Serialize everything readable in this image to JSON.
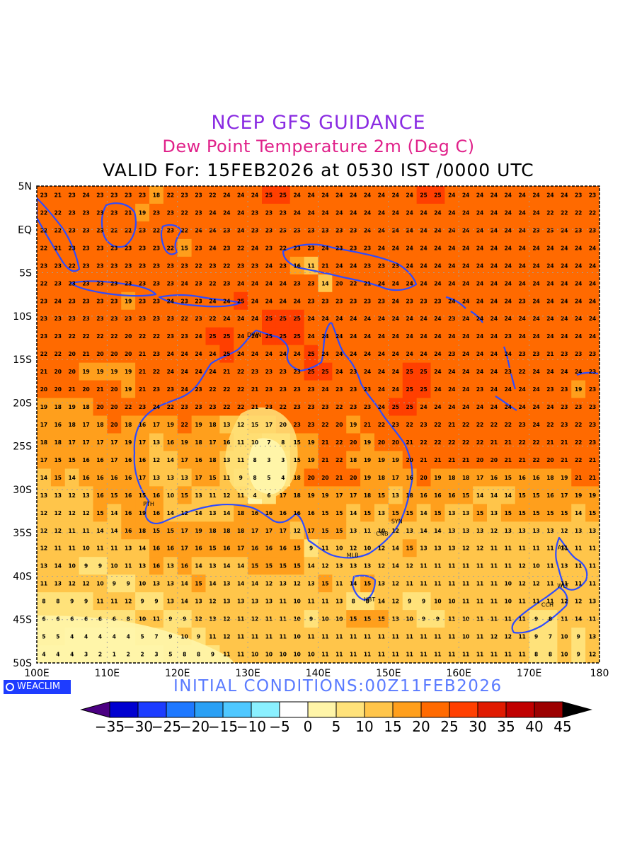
{
  "header": {
    "title": "NCEP GFS GUIDANCE",
    "subtitle": "Dew Point Temperature 2m (Deg C)",
    "valid_line": "VALID For: 15FEB2026 at 0530 IST /0000 UTC"
  },
  "footer": {
    "initial_conditions": "INITIAL CONDITIONS:00Z11FEB2026",
    "logo_text": "WEACLIM"
  },
  "map": {
    "lon_labels": [
      "100E",
      "110E",
      "120E",
      "130E",
      "140E",
      "150E",
      "160E",
      "170E",
      "180"
    ],
    "lat_labels": [
      "5N",
      "EQ",
      "5S",
      "10S",
      "15S",
      "20S",
      "25S",
      "30S",
      "35S",
      "40S",
      "45S",
      "50S"
    ],
    "stations": [
      "DWN",
      "PTH",
      "SYN",
      "CNB",
      "MLB",
      "HBT",
      "AKL",
      "WLT",
      "CCH"
    ],
    "coast_color": "#2e4bff"
  },
  "legend": {
    "labels": [
      "-35",
      "-30",
      "-25",
      "-20",
      "-15",
      "-10",
      "-5",
      "0",
      "5",
      "10",
      "15",
      "20",
      "25",
      "30",
      "35",
      "40",
      "45"
    ],
    "colors": [
      "#4b0082",
      "#0000d0",
      "#1c3cff",
      "#1e78ff",
      "#2aa0f5",
      "#4fc8ff",
      "#8af0ff",
      "#ffffff",
      "#fff5a8",
      "#ffe27a",
      "#ffc54a",
      "#ff9f1c",
      "#ff6a00",
      "#ff3f00",
      "#e01a00",
      "#c00000",
      "#9c0000",
      "#000000"
    ]
  },
  "chart_data": {
    "type": "heatmap",
    "title": "Dew Point Temperature 2m (Deg C)",
    "x_range": [
      100,
      180
    ],
    "y_range": [
      -50,
      5
    ],
    "grid": true,
    "values_rows_north_to_south": [
      [
        23,
        21,
        23,
        24,
        23,
        23,
        23,
        23,
        18,
        22,
        23,
        23,
        22,
        24,
        24,
        24,
        25,
        25,
        24,
        24,
        24,
        24,
        24,
        24,
        24,
        24,
        24,
        25,
        25,
        24,
        24,
        24,
        24,
        24,
        24,
        24,
        24,
        24,
        23,
        23
      ],
      [
        22,
        22,
        23,
        23,
        23,
        23,
        21,
        19,
        23,
        23,
        22,
        23,
        24,
        24,
        24,
        23,
        23,
        23,
        24,
        24,
        24,
        24,
        24,
        24,
        24,
        24,
        24,
        24,
        24,
        24,
        24,
        24,
        24,
        24,
        24,
        24,
        22,
        22,
        22,
        22
      ],
      [
        22,
        22,
        23,
        23,
        23,
        22,
        22,
        23,
        22,
        23,
        22,
        24,
        24,
        23,
        24,
        23,
        23,
        23,
        23,
        23,
        23,
        23,
        23,
        24,
        24,
        24,
        24,
        24,
        24,
        24,
        24,
        24,
        24,
        24,
        24,
        23,
        23,
        24,
        23,
        23
      ],
      [
        22,
        21,
        23,
        23,
        23,
        23,
        23,
        23,
        23,
        22,
        15,
        23,
        24,
        23,
        22,
        24,
        23,
        22,
        23,
        23,
        24,
        23,
        23,
        23,
        24,
        24,
        24,
        24,
        24,
        24,
        24,
        24,
        24,
        24,
        24,
        24,
        24,
        24,
        24,
        24
      ],
      [
        23,
        23,
        22,
        23,
        23,
        23,
        23,
        23,
        23,
        23,
        23,
        22,
        23,
        22,
        23,
        23,
        24,
        23,
        16,
        11,
        21,
        24,
        24,
        23,
        23,
        23,
        24,
        24,
        24,
        24,
        24,
        24,
        24,
        24,
        24,
        24,
        24,
        24,
        24,
        24
      ],
      [
        22,
        23,
        23,
        23,
        23,
        23,
        23,
        23,
        23,
        23,
        24,
        23,
        22,
        23,
        24,
        24,
        24,
        24,
        23,
        23,
        14,
        20,
        22,
        21,
        24,
        24,
        24,
        24,
        24,
        24,
        24,
        24,
        24,
        24,
        24,
        24,
        24,
        24,
        24,
        24
      ],
      [
        23,
        24,
        23,
        23,
        23,
        23,
        19,
        23,
        23,
        24,
        23,
        23,
        24,
        24,
        25,
        24,
        24,
        24,
        24,
        23,
        23,
        23,
        23,
        23,
        23,
        24,
        23,
        23,
        23,
        24,
        24,
        24,
        24,
        24,
        23,
        24,
        24,
        24,
        24,
        24
      ],
      [
        23,
        23,
        23,
        23,
        23,
        23,
        23,
        23,
        23,
        23,
        22,
        23,
        22,
        24,
        24,
        24,
        25,
        25,
        25,
        24,
        24,
        24,
        24,
        24,
        24,
        24,
        24,
        24,
        24,
        23,
        24,
        24,
        24,
        24,
        24,
        24,
        24,
        24,
        24,
        24
      ],
      [
        23,
        23,
        22,
        22,
        22,
        22,
        20,
        22,
        22,
        23,
        23,
        24,
        25,
        25,
        24,
        24,
        25,
        25,
        25,
        24,
        24,
        24,
        24,
        24,
        24,
        24,
        24,
        24,
        24,
        24,
        24,
        24,
        24,
        23,
        24,
        24,
        24,
        24,
        24,
        24
      ],
      [
        22,
        22,
        20,
        21,
        20,
        20,
        20,
        21,
        23,
        24,
        24,
        24,
        24,
        25,
        24,
        24,
        24,
        24,
        24,
        25,
        24,
        24,
        24,
        24,
        24,
        24,
        24,
        24,
        24,
        23,
        24,
        24,
        24,
        24,
        23,
        23,
        21,
        23,
        23,
        23
      ],
      [
        21,
        20,
        20,
        19,
        19,
        19,
        19,
        21,
        22,
        24,
        24,
        24,
        24,
        21,
        22,
        23,
        23,
        23,
        23,
        25,
        25,
        24,
        23,
        24,
        24,
        24,
        25,
        25,
        24,
        24,
        24,
        24,
        24,
        23,
        22,
        24,
        24,
        24,
        24,
        23
      ],
      [
        20,
        20,
        21,
        20,
        21,
        20,
        19,
        21,
        23,
        23,
        24,
        23,
        22,
        22,
        22,
        21,
        23,
        23,
        23,
        23,
        24,
        23,
        23,
        23,
        24,
        24,
        25,
        25,
        24,
        24,
        24,
        23,
        24,
        24,
        24,
        24,
        23,
        23,
        19,
        23
      ],
      [
        19,
        18,
        19,
        18,
        20,
        20,
        22,
        23,
        24,
        22,
        23,
        23,
        23,
        22,
        22,
        21,
        23,
        22,
        23,
        23,
        23,
        22,
        23,
        23,
        24,
        25,
        25,
        24,
        24,
        24,
        24,
        24,
        24,
        24,
        24,
        24,
        24,
        23,
        23,
        23
      ],
      [
        17,
        16,
        18,
        17,
        18,
        20,
        18,
        16,
        17,
        19,
        22,
        19,
        18,
        13,
        12,
        15,
        17,
        20,
        23,
        23,
        22,
        20,
        19,
        21,
        22,
        23,
        22,
        23,
        22,
        21,
        22,
        22,
        22,
        22,
        23,
        24,
        22,
        23,
        22,
        23
      ],
      [
        18,
        18,
        17,
        17,
        17,
        17,
        19,
        17,
        13,
        16,
        19,
        18,
        17,
        16,
        11,
        10,
        7,
        8,
        15,
        19,
        21,
        22,
        20,
        19,
        20,
        20,
        21,
        22,
        22,
        22,
        22,
        22,
        21,
        21,
        22,
        22,
        21,
        21,
        22,
        23
      ],
      [
        17,
        15,
        15,
        16,
        16,
        17,
        16,
        16,
        12,
        14,
        17,
        16,
        18,
        13,
        11,
        8,
        3,
        3,
        15,
        19,
        21,
        22,
        18,
        19,
        19,
        19,
        20,
        21,
        21,
        21,
        21,
        20,
        20,
        21,
        21,
        22,
        20,
        21,
        22,
        21
      ],
      [
        14,
        15,
        14,
        16,
        16,
        16,
        16,
        17,
        13,
        13,
        13,
        17,
        15,
        11,
        9,
        8,
        5,
        4,
        18,
        20,
        20,
        21,
        20,
        19,
        18,
        17,
        16,
        20,
        19,
        18,
        18,
        17,
        16,
        15,
        16,
        16,
        18,
        19,
        21,
        21
      ],
      [
        13,
        13,
        12,
        13,
        16,
        15,
        16,
        15,
        16,
        10,
        15,
        13,
        11,
        12,
        11,
        4,
        6,
        17,
        18,
        19,
        19,
        17,
        17,
        18,
        15,
        13,
        18,
        16,
        16,
        16,
        15,
        14,
        14,
        14,
        15,
        15,
        16,
        17,
        19,
        19
      ],
      [
        12,
        12,
        12,
        12,
        15,
        14,
        16,
        19,
        16,
        14,
        12,
        14,
        13,
        14,
        18,
        16,
        16,
        16,
        16,
        16,
        15,
        15,
        14,
        15,
        13,
        15,
        15,
        14,
        15,
        13,
        13,
        15,
        13,
        15,
        15,
        15,
        15,
        15,
        14,
        15
      ],
      [
        12,
        12,
        11,
        11,
        14,
        14,
        16,
        18,
        15,
        15,
        17,
        19,
        18,
        18,
        18,
        17,
        17,
        17,
        12,
        17,
        15,
        15,
        13,
        11,
        10,
        12,
        13,
        14,
        14,
        13,
        13,
        13,
        12,
        13,
        13,
        13,
        13,
        12,
        13,
        13
      ],
      [
        12,
        11,
        11,
        10,
        11,
        11,
        13,
        14,
        16,
        16,
        17,
        16,
        15,
        16,
        17,
        16,
        16,
        16,
        15,
        9,
        11,
        10,
        12,
        10,
        12,
        14,
        15,
        13,
        13,
        13,
        12,
        12,
        11,
        11,
        11,
        11,
        11,
        11,
        11,
        11
      ],
      [
        13,
        14,
        10,
        9,
        9,
        10,
        11,
        13,
        16,
        13,
        16,
        14,
        13,
        14,
        14,
        15,
        15,
        15,
        15,
        14,
        12,
        13,
        13,
        13,
        12,
        14,
        12,
        11,
        11,
        11,
        11,
        11,
        11,
        11,
        12,
        10,
        11,
        13,
        11,
        11
      ],
      [
        11,
        13,
        12,
        12,
        10,
        9,
        9,
        10,
        13,
        13,
        14,
        15,
        14,
        13,
        14,
        14,
        12,
        13,
        12,
        13,
        15,
        11,
        14,
        15,
        13,
        12,
        11,
        11,
        11,
        11,
        11,
        11,
        11,
        10,
        12,
        12,
        11,
        11,
        11,
        11
      ],
      [
        8,
        8,
        9,
        9,
        11,
        11,
        12,
        9,
        9,
        13,
        14,
        13,
        12,
        13,
        13,
        13,
        13,
        11,
        10,
        11,
        11,
        13,
        8,
        8,
        14,
        12,
        9,
        9,
        10,
        10,
        11,
        11,
        11,
        10,
        11,
        11,
        11,
        12,
        12,
        13
      ],
      [
        6,
        6,
        6,
        6,
        6,
        6,
        8,
        10,
        11,
        9,
        9,
        12,
        13,
        12,
        11,
        12,
        11,
        11,
        10,
        9,
        10,
        10,
        15,
        15,
        15,
        13,
        10,
        9,
        9,
        11,
        10,
        11,
        11,
        11,
        11,
        9,
        8,
        11,
        14,
        11
      ],
      [
        5,
        5,
        4,
        4,
        4,
        4,
        4,
        5,
        7,
        9,
        10,
        9,
        11,
        12,
        11,
        11,
        11,
        11,
        10,
        11,
        11,
        11,
        11,
        11,
        11,
        11,
        11,
        11,
        11,
        11,
        10,
        11,
        12,
        12,
        11,
        9,
        7,
        10,
        9,
        13
      ],
      [
        4,
        4,
        4,
        3,
        2,
        1,
        2,
        2,
        3,
        5,
        8,
        8,
        9,
        11,
        11,
        10,
        10,
        10,
        10,
        10,
        11,
        11,
        11,
        11,
        11,
        11,
        11,
        11,
        11,
        11,
        11,
        11,
        11,
        11,
        11,
        8,
        8,
        10,
        9,
        12
      ]
    ]
  }
}
